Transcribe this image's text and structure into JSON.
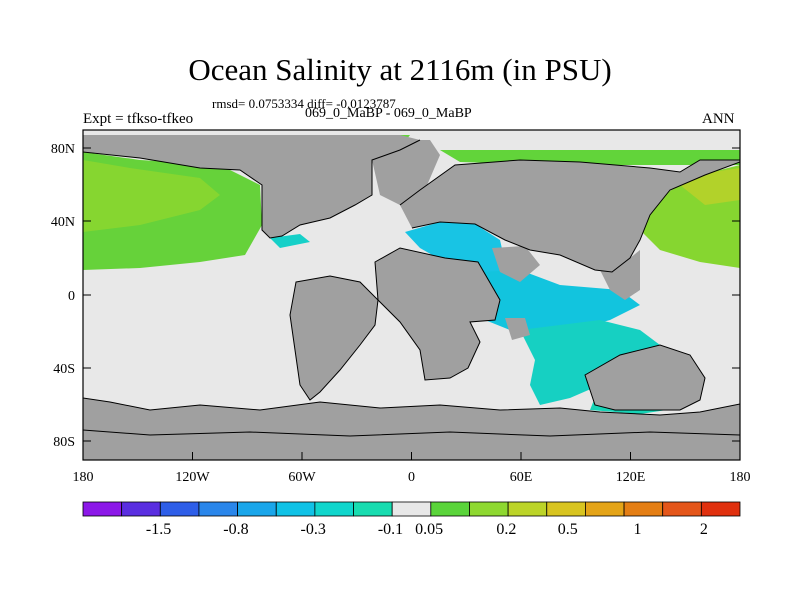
{
  "title": "Ocean Salinity at 2116m (in PSU)",
  "subtitle_stats": "rmsd= 0.0753334 diff= -0.0123787",
  "subtitle_case": "069_0_MaBP - 069_0_MaBP",
  "left_label": "Expt = tfkso-tfkeo",
  "right_label": "ANN",
  "x_ticks": [
    "180",
    "120W",
    "60W",
    "0",
    "60E",
    "120E",
    "180"
  ],
  "y_ticks": [
    "80N",
    "40N",
    "0",
    "40S",
    "80S"
  ],
  "colorbar": {
    "colors": [
      "#8c18e8",
      "#5a2ee0",
      "#2e5ee8",
      "#2a86ea",
      "#1aa6ea",
      "#10c2e6",
      "#10d6cc",
      "#18dcb0",
      "#e8e8e8",
      "#5ad43a",
      "#8ed830",
      "#bcd428",
      "#d8c420",
      "#e4a418",
      "#e47e14",
      "#e4561a",
      "#e0300e"
    ],
    "labels": [
      "-1.5",
      "-0.8",
      "-0.3",
      "-0.1",
      "0.05",
      "0.2",
      "0.5",
      "1",
      "2"
    ]
  },
  "map": {
    "land_color": "#a0a0a0",
    "ocean_color": "#e8e8e8",
    "coast_color": "#000000"
  }
}
